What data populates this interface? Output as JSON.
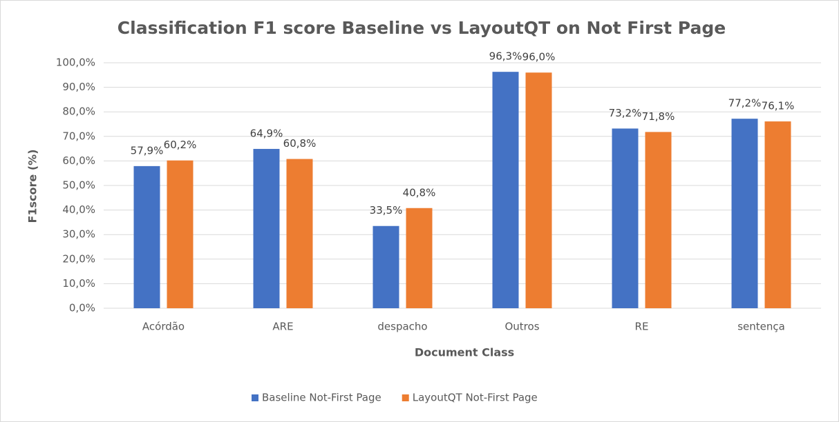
{
  "chart_data": {
    "type": "bar",
    "title": "Classification F1 score Baseline vs LayoutQT on Not First Page",
    "x_label": "Document Class",
    "y_label": "F1score (%)",
    "categories": [
      "Acórdão",
      "ARE",
      "despacho",
      "Outros",
      "RE",
      "sentença"
    ],
    "series": [
      {
        "name": "Baseline Not-First Page",
        "color": "#4472c4",
        "values": [
          57.9,
          64.9,
          33.5,
          96.3,
          73.2,
          77.2
        ],
        "value_labels": [
          "57,9%",
          "64,9%",
          "33,5%",
          "96,3%",
          "73,2%",
          "77,2%"
        ]
      },
      {
        "name": "LayoutQT Not-First Page",
        "color": "#ed7d31",
        "values": [
          60.2,
          60.8,
          40.8,
          96.0,
          71.8,
          76.1
        ],
        "value_labels": [
          "60,2%",
          "60,8%",
          "40,8%",
          "96,0%",
          "71,8%",
          "76,1%"
        ]
      }
    ],
    "ylim": [
      0,
      100
    ],
    "yticks": [
      {
        "value": 0,
        "label": "0,0%"
      },
      {
        "value": 10,
        "label": "10,0%"
      },
      {
        "value": 20,
        "label": "20,0%"
      },
      {
        "value": 30,
        "label": "30,0%"
      },
      {
        "value": 40,
        "label": "40,0%"
      },
      {
        "value": 50,
        "label": "50,0%"
      },
      {
        "value": 60,
        "label": "60,0%"
      },
      {
        "value": 70,
        "label": "70,0%"
      },
      {
        "value": 80,
        "label": "80,0%"
      },
      {
        "value": 90,
        "label": "90,0%"
      },
      {
        "value": 100,
        "label": "100,0%"
      }
    ],
    "grid": true,
    "legend": "bottom"
  }
}
